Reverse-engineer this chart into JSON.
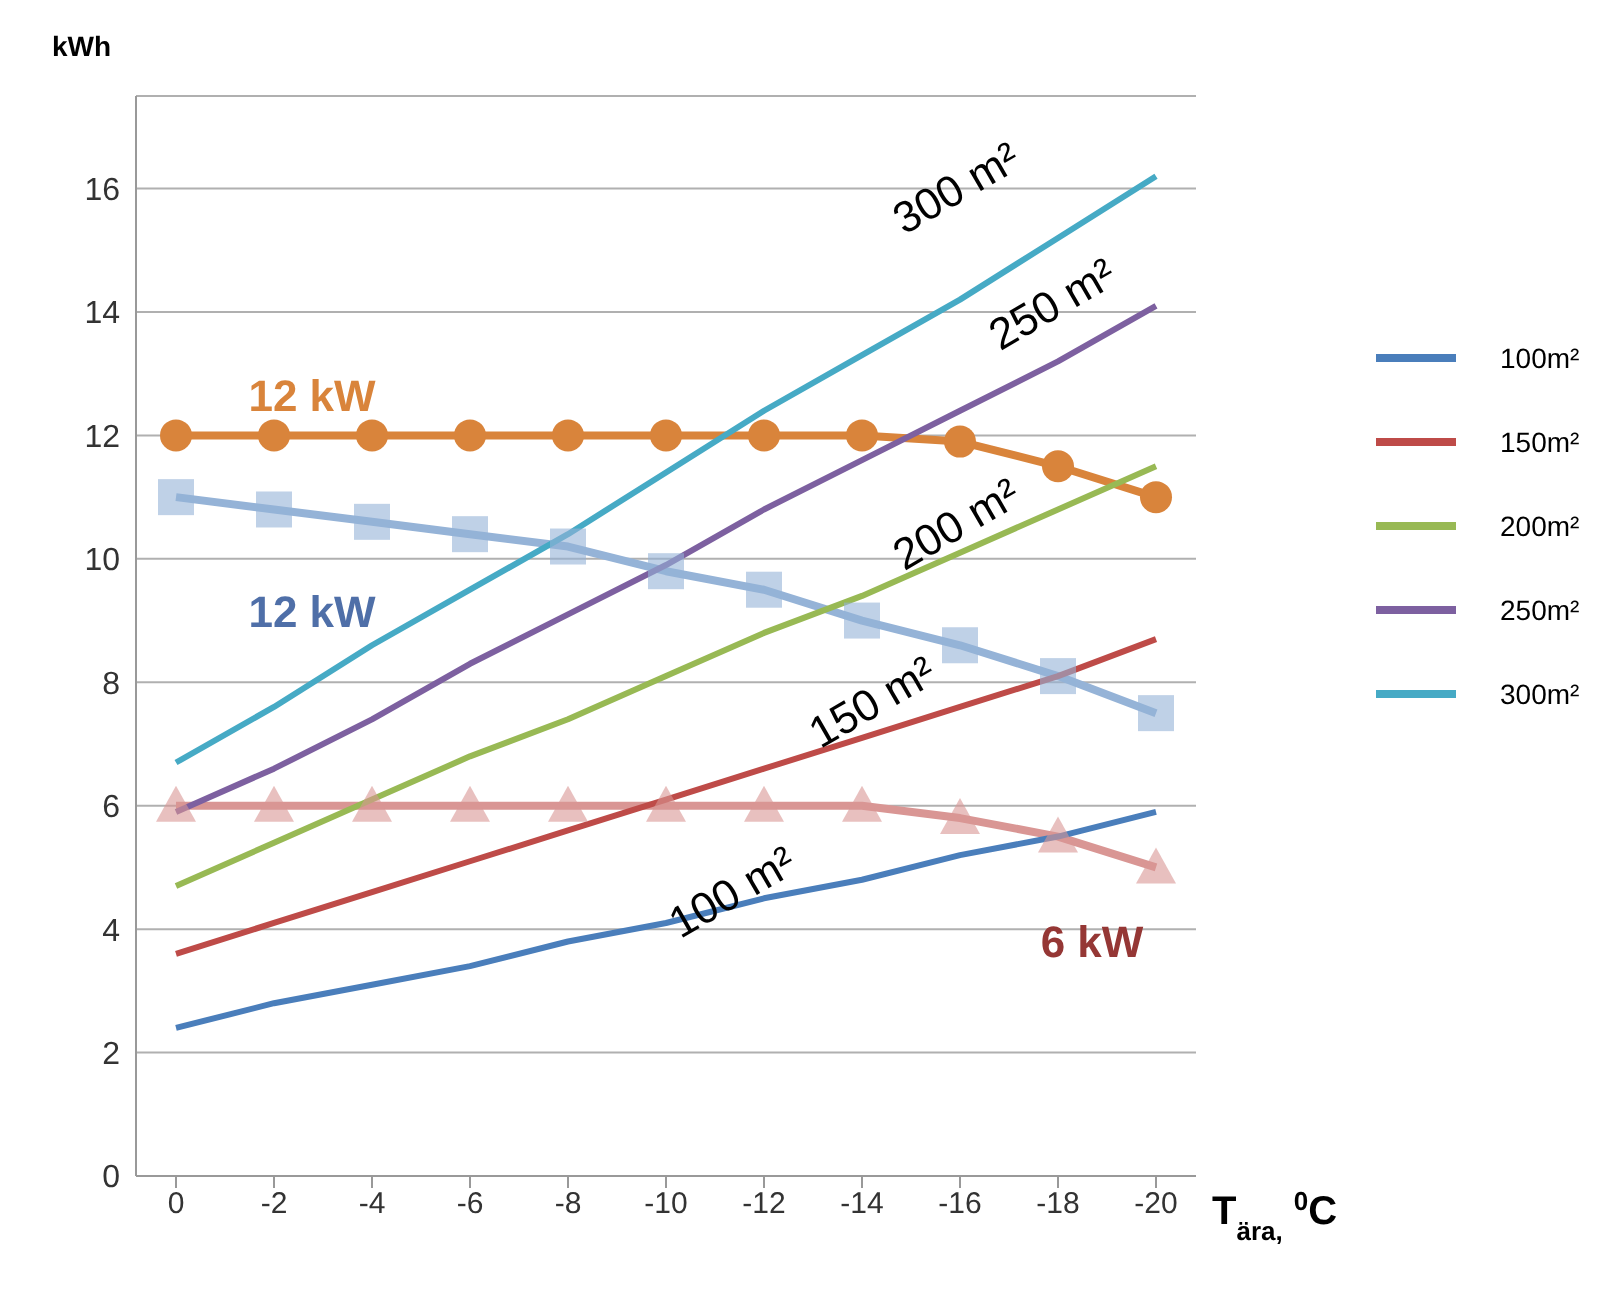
{
  "chart_data": {
    "type": "line",
    "xlabel": "T$_{ära,}$ $^{0}$C",
    "ylabel": "kWh",
    "categories": [
      "0",
      "-2",
      "-4",
      "-6",
      "-8",
      "-10",
      "-12",
      "-14",
      "-16",
      "-18",
      "-20"
    ],
    "ylim": [
      0,
      17.5
    ],
    "yticks": [
      0,
      2,
      4,
      6,
      8,
      10,
      12,
      14,
      16
    ],
    "grid": "y",
    "legend": "right",
    "line_style": "solid",
    "series": [
      {
        "name": "100m²",
        "color": "#4a7ebb",
        "marker": "none",
        "values": [
          2.4,
          2.8,
          3.1,
          3.4,
          3.8,
          4.1,
          4.5,
          4.8,
          5.2,
          5.5,
          5.9
        ]
      },
      {
        "name": "150m²",
        "color": "#be4b48",
        "marker": "none",
        "values": [
          3.6,
          4.1,
          4.6,
          5.1,
          5.6,
          6.1,
          6.6,
          7.1,
          7.6,
          8.1,
          8.7
        ]
      },
      {
        "name": "200m²",
        "color": "#98b954",
        "marker": "none",
        "values": [
          4.7,
          5.4,
          6.1,
          6.8,
          7.4,
          8.1,
          8.8,
          9.4,
          10.1,
          10.8,
          11.5
        ]
      },
      {
        "name": "250m²",
        "color": "#7d60a0",
        "marker": "none",
        "values": [
          5.9,
          6.6,
          7.4,
          8.3,
          9.1,
          9.9,
          10.8,
          11.6,
          12.4,
          13.2,
          14.1
        ]
      },
      {
        "name": "300m²",
        "color": "#46aac5",
        "marker": "none",
        "values": [
          6.7,
          7.6,
          8.6,
          9.5,
          10.4,
          11.4,
          12.4,
          13.3,
          14.2,
          15.2,
          16.2
        ]
      },
      {
        "color": "#d9843b",
        "marker": "circle",
        "values": [
          12,
          12,
          12,
          12,
          12,
          12,
          12,
          12,
          11.9,
          11.5,
          11
        ]
      },
      {
        "color": "#95b3d7",
        "marker": "square",
        "values": [
          11,
          10.8,
          10.6,
          10.4,
          10.2,
          9.8,
          9.5,
          9.0,
          8.6,
          8.1,
          7.5
        ]
      },
      {
        "color": "#d99694",
        "marker": "triangle",
        "values": [
          6,
          6,
          6,
          6,
          6,
          6,
          6,
          6,
          5.8,
          5.5,
          5.0
        ]
      }
    ],
    "annotations": [
      "300  m²",
      "250  m²",
      "200  m²",
      "150  m²",
      "100  m²",
      "12 kW",
      "12 kW",
      "6 kW"
    ]
  }
}
